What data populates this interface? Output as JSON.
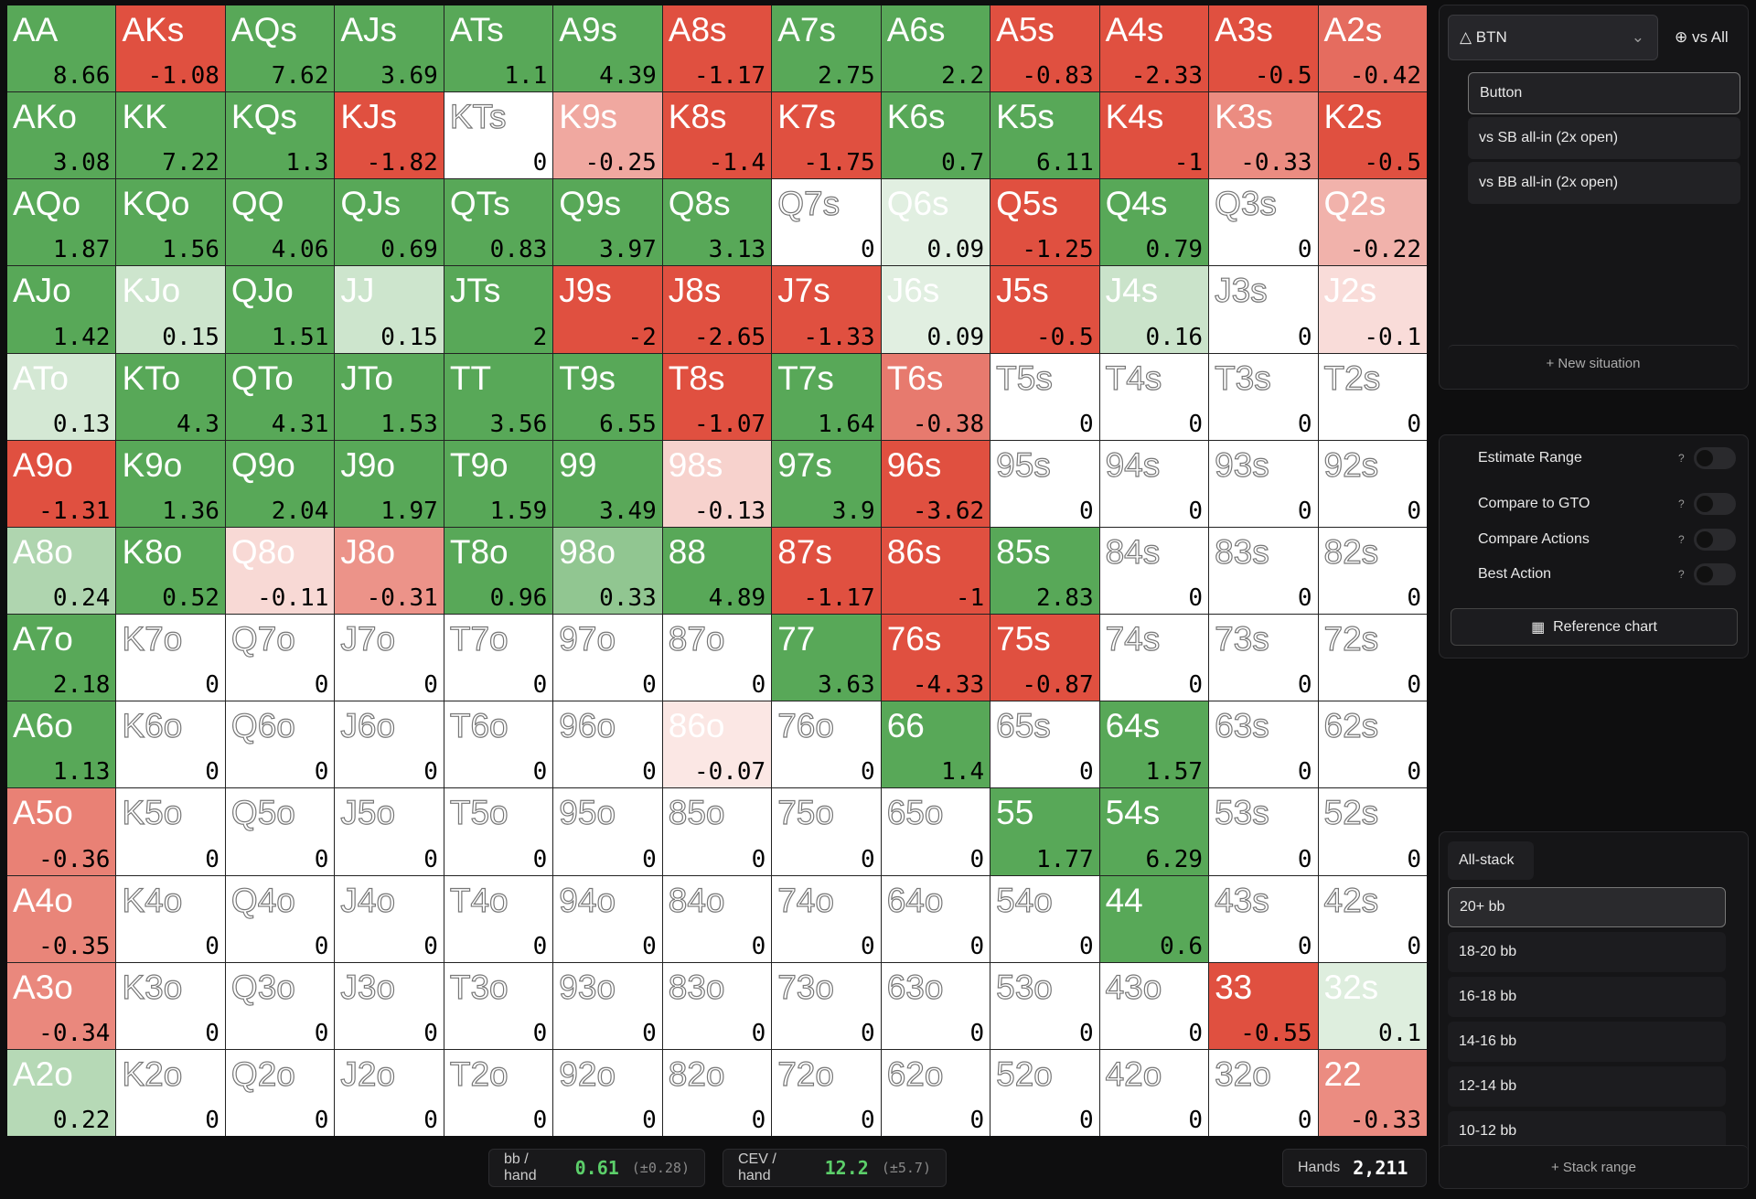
{
  "grid": {
    "rows": [
      [
        [
          "AA",
          8.66
        ],
        [
          "AKs",
          -1.08
        ],
        [
          "AQs",
          7.62
        ],
        [
          "AJs",
          3.69
        ],
        [
          "ATs",
          1.1
        ],
        [
          "A9s",
          4.39
        ],
        [
          "A8s",
          -1.17
        ],
        [
          "A7s",
          2.75
        ],
        [
          "A6s",
          2.2
        ],
        [
          "A5s",
          -0.83
        ],
        [
          "A4s",
          -2.33
        ],
        [
          "A3s",
          -0.5
        ],
        [
          "A2s",
          -0.42
        ]
      ],
      [
        [
          "AKo",
          3.08
        ],
        [
          "KK",
          7.22
        ],
        [
          "KQs",
          1.3
        ],
        [
          "KJs",
          -1.82
        ],
        [
          "KTs",
          0
        ],
        [
          "K9s",
          -0.25
        ],
        [
          "K8s",
          -1.4
        ],
        [
          "K7s",
          -1.75
        ],
        [
          "K6s",
          0.7
        ],
        [
          "K5s",
          6.11
        ],
        [
          "K4s",
          -1
        ],
        [
          "K3s",
          -0.33
        ],
        [
          "K2s",
          -0.5
        ]
      ],
      [
        [
          "AQo",
          1.87
        ],
        [
          "KQo",
          1.56
        ],
        [
          "QQ",
          4.06
        ],
        [
          "QJs",
          0.69
        ],
        [
          "QTs",
          0.83
        ],
        [
          "Q9s",
          3.97
        ],
        [
          "Q8s",
          3.13
        ],
        [
          "Q7s",
          0
        ],
        [
          "Q6s",
          0.09
        ],
        [
          "Q5s",
          -1.25
        ],
        [
          "Q4s",
          0.79
        ],
        [
          "Q3s",
          0
        ],
        [
          "Q2s",
          -0.22
        ]
      ],
      [
        [
          "AJo",
          1.42
        ],
        [
          "KJo",
          0.15
        ],
        [
          "QJo",
          1.51
        ],
        [
          "JJ",
          0.15
        ],
        [
          "JTs",
          2
        ],
        [
          "J9s",
          -2
        ],
        [
          "J8s",
          -2.65
        ],
        [
          "J7s",
          -1.33
        ],
        [
          "J6s",
          0.09
        ],
        [
          "J5s",
          -0.5
        ],
        [
          "J4s",
          0.16
        ],
        [
          "J3s",
          0
        ],
        [
          "J2s",
          -0.1
        ]
      ],
      [
        [
          "ATo",
          0.13
        ],
        [
          "KTo",
          4.3
        ],
        [
          "QTo",
          4.31
        ],
        [
          "JTo",
          1.53
        ],
        [
          "TT",
          3.56
        ],
        [
          "T9s",
          6.55
        ],
        [
          "T8s",
          -1.07
        ],
        [
          "T7s",
          1.64
        ],
        [
          "T6s",
          -0.38
        ],
        [
          "T5s",
          0
        ],
        [
          "T4s",
          0
        ],
        [
          "T3s",
          0
        ],
        [
          "T2s",
          0
        ]
      ],
      [
        [
          "A9o",
          -1.31
        ],
        [
          "K9o",
          1.36
        ],
        [
          "Q9o",
          2.04
        ],
        [
          "J9o",
          1.97
        ],
        [
          "T9o",
          1.59
        ],
        [
          "99",
          3.49
        ],
        [
          "98s",
          -0.13
        ],
        [
          "97s",
          3.9
        ],
        [
          "96s",
          -3.62
        ],
        [
          "95s",
          0
        ],
        [
          "94s",
          0
        ],
        [
          "93s",
          0
        ],
        [
          "92s",
          0
        ]
      ],
      [
        [
          "A8o",
          0.24
        ],
        [
          "K8o",
          0.52
        ],
        [
          "Q8o",
          -0.11
        ],
        [
          "J8o",
          -0.31
        ],
        [
          "T8o",
          0.96
        ],
        [
          "98o",
          0.33
        ],
        [
          "88",
          4.89
        ],
        [
          "87s",
          -1.17
        ],
        [
          "86s",
          -1
        ],
        [
          "85s",
          2.83
        ],
        [
          "84s",
          0
        ],
        [
          "83s",
          0
        ],
        [
          "82s",
          0
        ]
      ],
      [
        [
          "A7o",
          2.18
        ],
        [
          "K7o",
          0
        ],
        [
          "Q7o",
          0
        ],
        [
          "J7o",
          0
        ],
        [
          "T7o",
          0
        ],
        [
          "97o",
          0
        ],
        [
          "87o",
          0
        ],
        [
          "77",
          3.63
        ],
        [
          "76s",
          -4.33
        ],
        [
          "75s",
          -0.87
        ],
        [
          "74s",
          0
        ],
        [
          "73s",
          0
        ],
        [
          "72s",
          0
        ]
      ],
      [
        [
          "A6o",
          1.13
        ],
        [
          "K6o",
          0
        ],
        [
          "Q6o",
          0
        ],
        [
          "J6o",
          0
        ],
        [
          "T6o",
          0
        ],
        [
          "96o",
          0
        ],
        [
          "86o",
          -0.07
        ],
        [
          "76o",
          0
        ],
        [
          "66",
          1.4
        ],
        [
          "65s",
          0
        ],
        [
          "64s",
          1.57
        ],
        [
          "63s",
          0
        ],
        [
          "62s",
          0
        ]
      ],
      [
        [
          "A5o",
          -0.36
        ],
        [
          "K5o",
          0
        ],
        [
          "Q5o",
          0
        ],
        [
          "J5o",
          0
        ],
        [
          "T5o",
          0
        ],
        [
          "95o",
          0
        ],
        [
          "85o",
          0
        ],
        [
          "75o",
          0
        ],
        [
          "65o",
          0
        ],
        [
          "55",
          1.77
        ],
        [
          "54s",
          6.29
        ],
        [
          "53s",
          0
        ],
        [
          "52s",
          0
        ]
      ],
      [
        [
          "A4o",
          -0.35
        ],
        [
          "K4o",
          0
        ],
        [
          "Q4o",
          0
        ],
        [
          "J4o",
          0
        ],
        [
          "T4o",
          0
        ],
        [
          "94o",
          0
        ],
        [
          "84o",
          0
        ],
        [
          "74o",
          0
        ],
        [
          "64o",
          0
        ],
        [
          "54o",
          0
        ],
        [
          "44",
          0.6
        ],
        [
          "43s",
          0
        ],
        [
          "42s",
          0
        ]
      ],
      [
        [
          "A3o",
          -0.34
        ],
        [
          "K3o",
          0
        ],
        [
          "Q3o",
          0
        ],
        [
          "J3o",
          0
        ],
        [
          "T3o",
          0
        ],
        [
          "93o",
          0
        ],
        [
          "83o",
          0
        ],
        [
          "73o",
          0
        ],
        [
          "63o",
          0
        ],
        [
          "53o",
          0
        ],
        [
          "43o",
          0
        ],
        [
          "33",
          -0.55
        ],
        [
          "32s",
          0.1
        ]
      ],
      [
        [
          "A2o",
          0.22
        ],
        [
          "K2o",
          0
        ],
        [
          "Q2o",
          0
        ],
        [
          "J2o",
          0
        ],
        [
          "T2o",
          0
        ],
        [
          "92o",
          0
        ],
        [
          "82o",
          0
        ],
        [
          "72o",
          0
        ],
        [
          "62o",
          0
        ],
        [
          "52o",
          0
        ],
        [
          "42o",
          0
        ],
        [
          "32o",
          0
        ],
        [
          "22",
          -0.33
        ]
      ]
    ]
  },
  "stats": [
    {
      "label": "bb / hand",
      "value": 0.61,
      "error": "(±0.28)"
    },
    {
      "label": "CEV / hand",
      "value": 12.2,
      "error": "(±5.7)"
    }
  ],
  "hands": {
    "label": "Hands",
    "value": "2,211"
  },
  "sidebar": {
    "position": "BTN",
    "opponent": "vs All",
    "situations": [
      "Button",
      "vs SB all-in (2x open)",
      "vs BB all-in (2x open)"
    ],
    "new_situation": "+ New situation",
    "toggles": [
      {
        "label": "Estimate Range",
        "help": "?"
      },
      {
        "label": "Compare to GTO",
        "help": "?"
      },
      {
        "label": "Compare Actions",
        "help": "?"
      },
      {
        "label": "Best Action",
        "help": "?"
      }
    ],
    "reference": "Reference chart",
    "stack_tab": "All-stack",
    "stack_ranges": [
      "20+ bb",
      "18-20 bb",
      "16-18 bb",
      "14-16 bb",
      "12-14 bb",
      "10-12 bb"
    ],
    "add_stack": "+ Stack range"
  }
}
